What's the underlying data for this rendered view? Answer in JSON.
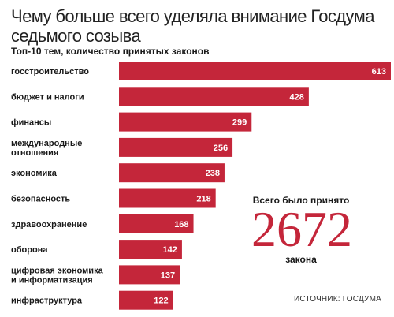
{
  "chart_data": {
    "type": "bar",
    "orientation": "horizontal",
    "title": "Чему больше всего уделяла внимание Госдума седьмого созыва",
    "subtitle": "Топ-10 тем, количество принятых законов",
    "categories": [
      [
        "госстроительство"
      ],
      [
        "бюджет и налоги"
      ],
      [
        "финансы"
      ],
      [
        "международные",
        "отношения"
      ],
      [
        "экономика"
      ],
      [
        "безопасность"
      ],
      [
        "здравоохранение"
      ],
      [
        "оборона"
      ],
      [
        "цифровая экономика",
        "и информатизация"
      ],
      [
        "инфраструктура"
      ]
    ],
    "values": [
      613,
      428,
      299,
      256,
      238,
      218,
      168,
      142,
      137,
      122
    ],
    "bar_color": "#c4263a",
    "grid": false,
    "legend": "none"
  },
  "total": {
    "prefix": "Всего было принято",
    "number": "2672",
    "suffix": "закона",
    "color": "#c4263a"
  },
  "source": "ИСТОЧНИК: ГОСДУМА"
}
